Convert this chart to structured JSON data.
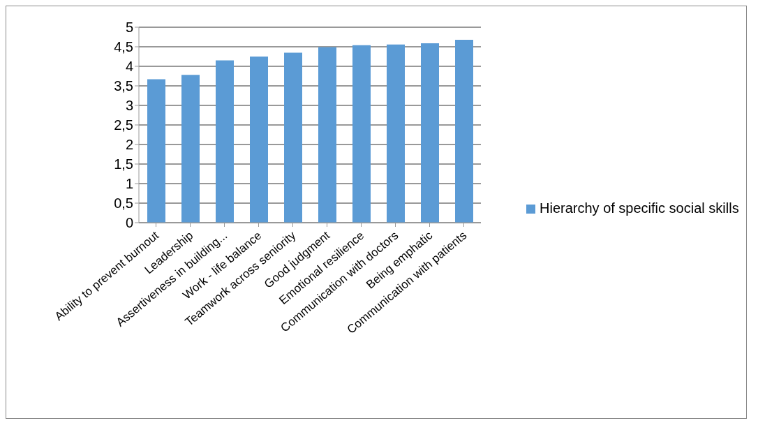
{
  "chart_data": {
    "type": "bar",
    "categories": [
      "Ability to prevent burnout",
      "Leadership",
      "Assertiveness in building...",
      "Work - life balance",
      "Teamwork across seniority",
      "Good judgment",
      "Emotional resilience",
      "Communication with doctors",
      "Being emphatic",
      "Communication with patients"
    ],
    "series": [
      {
        "name": "Hierarchy of specific social skills",
        "color": "#5b9bd5",
        "values": [
          3.67,
          3.78,
          4.15,
          4.25,
          4.35,
          4.49,
          4.54,
          4.56,
          4.59,
          4.68
        ]
      }
    ],
    "ylim": [
      0,
      5
    ],
    "yticks": [
      {
        "value": 0,
        "label": "0"
      },
      {
        "value": 0.5,
        "label": "0,5"
      },
      {
        "value": 1,
        "label": "1"
      },
      {
        "value": 1.5,
        "label": "1,5"
      },
      {
        "value": 2,
        "label": "2"
      },
      {
        "value": 2.5,
        "label": "2,5"
      },
      {
        "value": 3,
        "label": "3"
      },
      {
        "value": 3.5,
        "label": "3,5"
      },
      {
        "value": 4,
        "label": "4"
      },
      {
        "value": 4.5,
        "label": "4,5"
      },
      {
        "value": 5,
        "label": "5"
      }
    ],
    "grid": "y",
    "legend": "right"
  }
}
